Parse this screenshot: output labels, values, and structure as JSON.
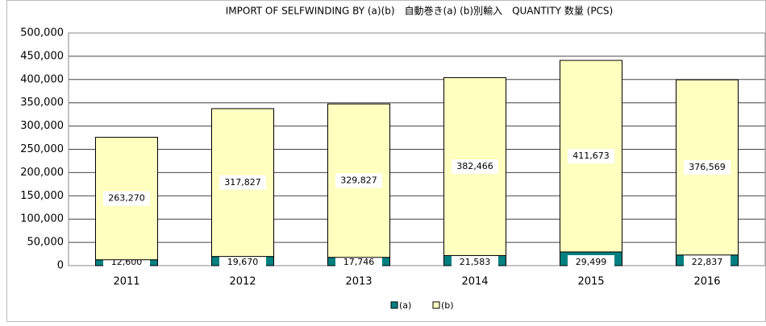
{
  "chart_data": {
    "type": "stacked_bar",
    "title": "IMPORT OF SELFWINDING BY (a)(b)　自動巻き(a) (b)別輸入　QUANTITY 数量 (PCS)",
    "categories": [
      "2011",
      "2012",
      "2013",
      "2014",
      "2015",
      "2016"
    ],
    "series": [
      {
        "name": "(a)",
        "color": "#008080",
        "values": [
          12600,
          19670,
          17746,
          21583,
          29499,
          22837
        ],
        "value_labels": [
          "12,600",
          "19,670",
          "17,746",
          "21,583",
          "29,499",
          "22,837"
        ]
      },
      {
        "name": "(b)",
        "color": "#ffffc0",
        "values": [
          263270,
          317827,
          329827,
          382466,
          411673,
          376569
        ],
        "value_labels": [
          "263,270",
          "317,827",
          "329,827",
          "382,466",
          "411,673",
          "376,569"
        ]
      }
    ],
    "ylim": [
      0,
      500000
    ],
    "yticks": [
      0,
      {
        "value": 50000,
        "label": "50,000"
      },
      {
        "value": 100000,
        "label": "100,000"
      },
      {
        "value": 150000,
        "label": "150,000"
      },
      {
        "value": 200000,
        "label": "200,000"
      },
      {
        "value": 250000,
        "label": "250,000"
      },
      {
        "value": 300000,
        "label": "300,000"
      },
      {
        "value": 350000,
        "label": "350,000"
      },
      {
        "value": 400000,
        "label": "400,000"
      },
      {
        "value": 450000,
        "label": "450,000"
      },
      {
        "value": 500000,
        "label": "500,000"
      }
    ],
    "grid": true,
    "legend": "bottom"
  }
}
